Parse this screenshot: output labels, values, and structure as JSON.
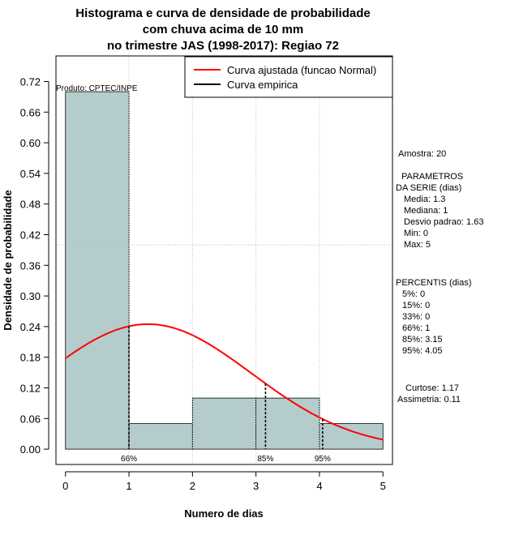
{
  "chart_data": {
    "type": "bar",
    "title": [
      "Histograma e curva de densidade de probabilidade",
      "com chuva acima de 10 mm",
      "no trimestre JAS (1998-2017): Regiao 72"
    ],
    "xlabel": "Numero de dias",
    "ylabel": "Densidade de probabilidade",
    "xlim": [
      -0.15,
      5.15
    ],
    "ylim": [
      -0.03,
      0.77
    ],
    "x_ticks": [
      0,
      1,
      2,
      3,
      4,
      5
    ],
    "x_tick_labels": [
      "0",
      "1",
      "2",
      "3",
      "4",
      "5"
    ],
    "y_ticks": [
      0.0,
      0.06,
      0.12,
      0.18,
      0.24,
      0.3,
      0.36,
      0.42,
      0.48,
      0.54,
      0.6,
      0.66,
      0.72
    ],
    "y_tick_labels": [
      "0.00",
      "0.06",
      "0.12",
      "0.18",
      "0.24",
      "0.30",
      "0.36",
      "0.42",
      "0.48",
      "0.54",
      "0.60",
      "0.66",
      "0.72"
    ],
    "bins": [
      {
        "x0": 0,
        "x1": 1,
        "density": 0.7
      },
      {
        "x0": 1,
        "x1": 2,
        "density": 0.05
      },
      {
        "x0": 2,
        "x1": 3,
        "density": 0.1
      },
      {
        "x0": 3,
        "x1": 4,
        "density": 0.1
      },
      {
        "x0": 4,
        "x1": 5,
        "density": 0.05
      }
    ],
    "normal_fit": {
      "mean": 1.3,
      "sd": 1.63,
      "x_from": 0,
      "x_to": 5
    },
    "percentile_markers": [
      {
        "x": 1.0,
        "label": "66%"
      },
      {
        "x": 3.15,
        "label": "85%"
      },
      {
        "x": 4.05,
        "label": "95%"
      }
    ],
    "reference_lines": {
      "vertical": [
        1,
        2,
        3,
        4
      ],
      "horizontal": [
        0.4
      ]
    },
    "legend": {
      "position": "top-right",
      "entries": [
        {
          "label": "Curva ajustada (funcao Normal)",
          "color": "#ff0000"
        },
        {
          "label": "Curva empirica",
          "color": "#000000"
        }
      ]
    },
    "annotation": "Produto: CPTEC/INPE",
    "colors": {
      "bar_fill": "#b4cccc",
      "fit_line": "#ff0000",
      "grid": "#bebebe"
    }
  },
  "stats_panel": {
    "amostra": "Amostra: 20",
    "params_title_1": "PARAMETROS",
    "params_title_2": "DA SERIE (dias)",
    "media": "Media: 1.3",
    "mediana": "Mediana: 1",
    "desvio": "Desvio padrao: 1.63",
    "min": "Min: 0",
    "max": "Max: 5",
    "percentis_title": "PERCENTIS (dias)",
    "p5": "5%: 0",
    "p15": "15%: 0",
    "p33": "33%: 0",
    "p66": "66%: 1",
    "p85": "85%: 3.15",
    "p95": "95%: 4.05",
    "curtose": "Curtose: 1.17",
    "assimetria": "Assimetria: 0.11"
  }
}
